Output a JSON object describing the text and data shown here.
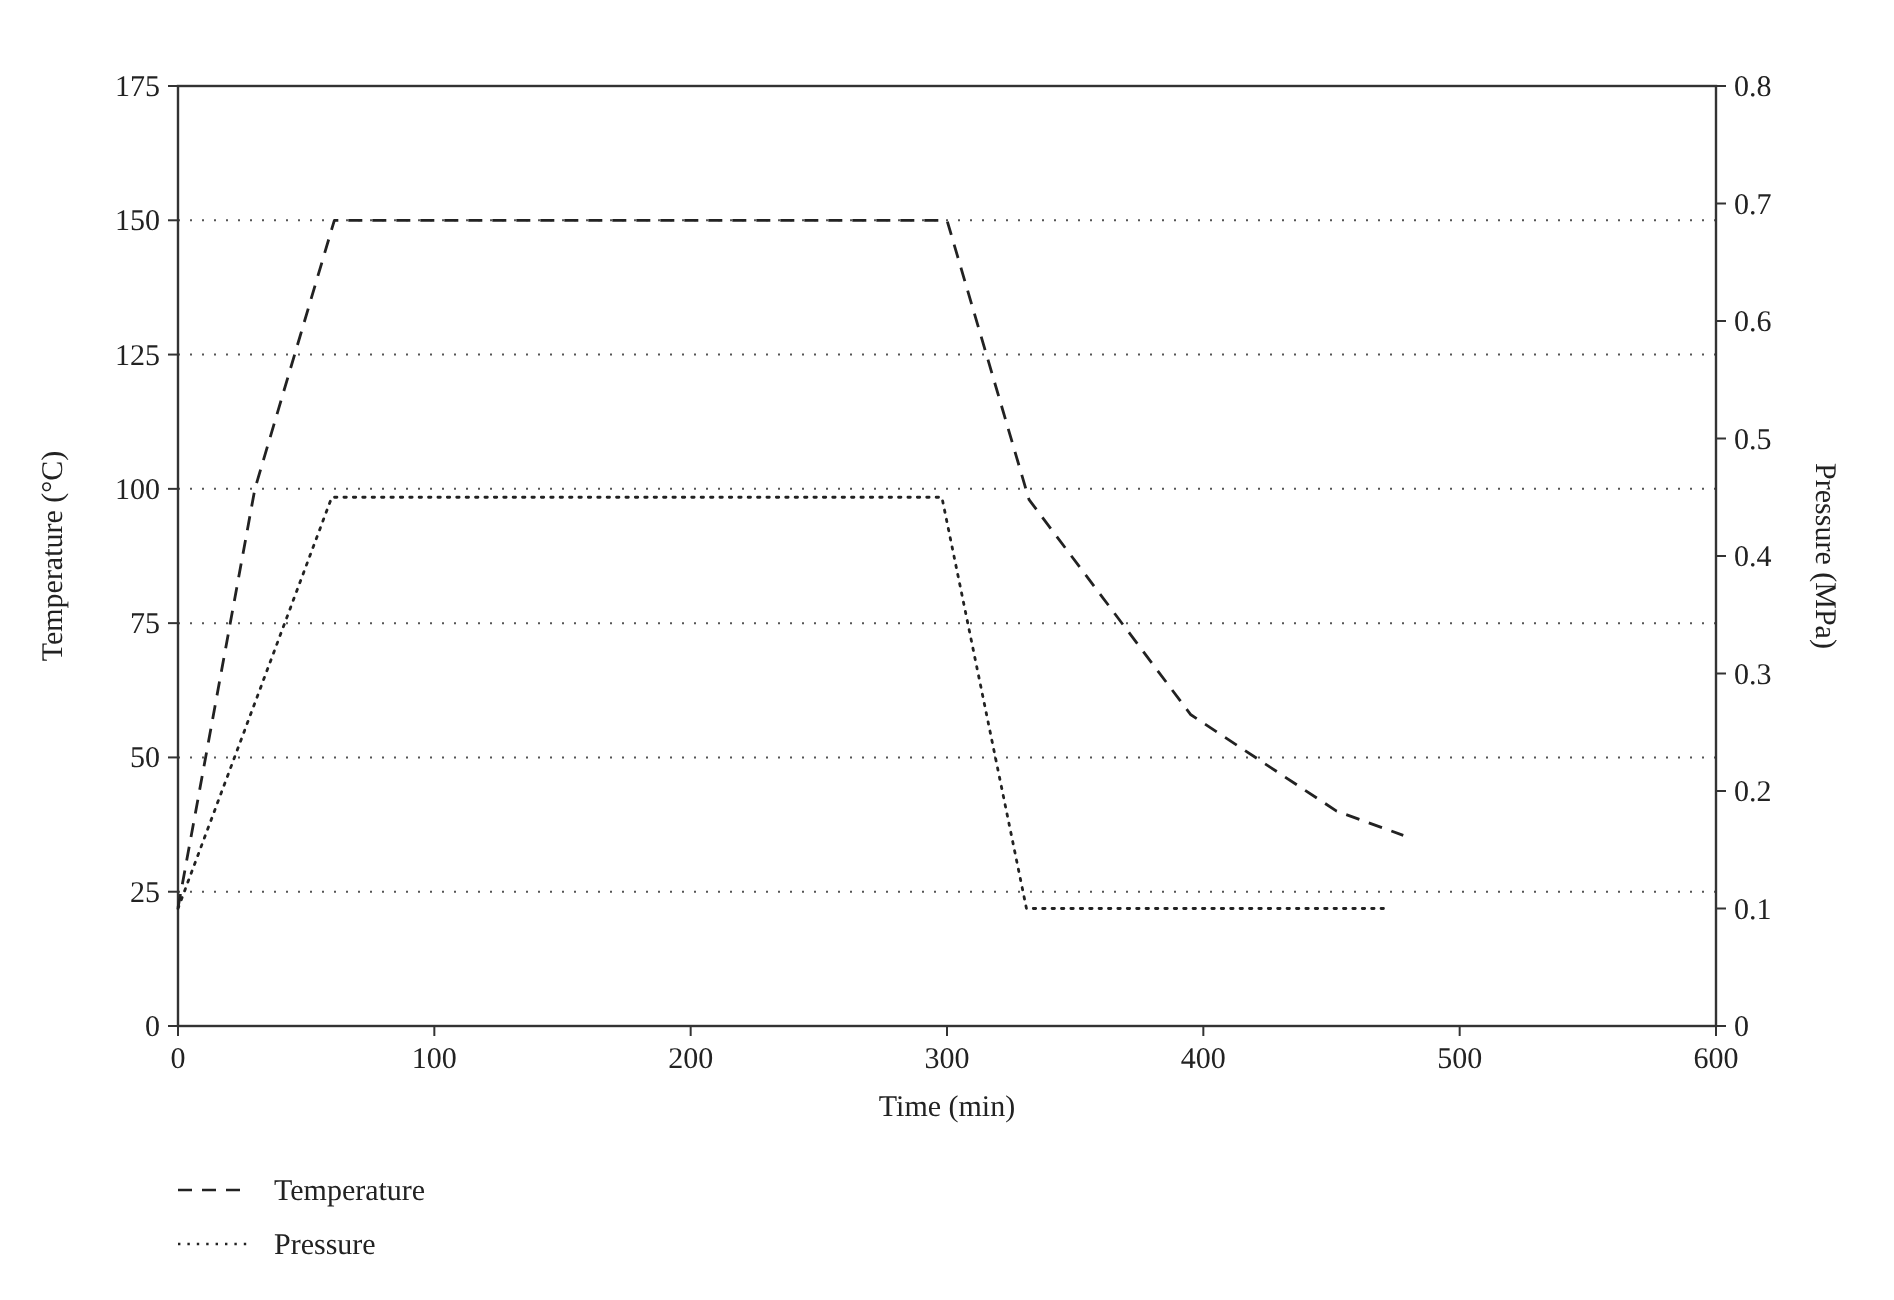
{
  "chart_data": {
    "type": "line",
    "xlabel": "Time (min)",
    "ylabel": "Temperature (°C)",
    "y2label": "Pressure (MPa)",
    "xlim": [
      0,
      600
    ],
    "xticks": [
      0,
      100,
      200,
      300,
      400,
      500,
      600
    ],
    "ylim": [
      0,
      175
    ],
    "yticks": [
      0,
      25,
      50,
      75,
      100,
      125,
      150,
      175
    ],
    "y2lim": [
      0,
      0.8
    ],
    "y2ticks": [
      0,
      0.1,
      0.2,
      0.3,
      0.4,
      0.5,
      0.6,
      0.7,
      0.8
    ],
    "grid": "y",
    "legend": "bottom left",
    "series": [
      {
        "name": "Temperature",
        "color": "#222222",
        "line_style": "dashed",
        "x": [
          0,
          30,
          61,
          300,
          332,
          395,
          452,
          478
        ],
        "values": [
          22,
          100,
          150,
          150,
          98,
          58,
          40,
          35.5
        ]
      },
      {
        "name": "Pressure",
        "color": "#222222",
        "line_style": "dotted",
        "axis": "y2",
        "x": [
          0,
          60,
          298,
          331,
          472
        ],
        "values": [
          0.1,
          0.45,
          0.45,
          0.1,
          0.1
        ]
      }
    ]
  }
}
